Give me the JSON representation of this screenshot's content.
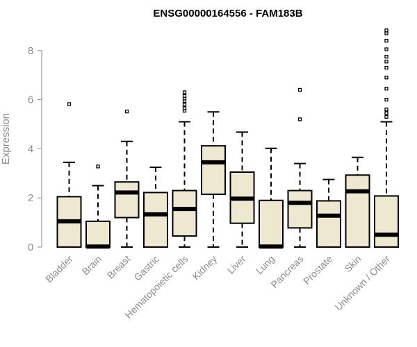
{
  "chart_data": {
    "type": "boxplot",
    "title": "ENSG00000164556 - FAM183B",
    "xlabel": "",
    "ylabel": "Expression",
    "ylim": [
      0,
      8.8
    ],
    "yticks": [
      0,
      2,
      4,
      6,
      8
    ],
    "grid": false,
    "legend": "none",
    "colors": {
      "box_fill": "#efe8d0",
      "stroke": "#000000",
      "axis_text": "#8c8c8c"
    },
    "categories": [
      "Bladder",
      "Brain",
      "Breast",
      "Gastric",
      "Hematopoietic cells",
      "Kidney",
      "Liver",
      "Lung",
      "Pancreas",
      "Prostate",
      "Skin",
      "Unknown / Other"
    ],
    "boxes": [
      {
        "min": 0,
        "q1": 0,
        "median": 1.05,
        "q3": 2.05,
        "max": 3.45,
        "outliers": [
          5.82
        ]
      },
      {
        "min": 0,
        "q1": 0,
        "median": 0.02,
        "q3": 1.05,
        "max": 2.5,
        "outliers": [
          3.28
        ]
      },
      {
        "min": 0,
        "q1": 1.2,
        "median": 2.22,
        "q3": 2.65,
        "max": 4.3,
        "outliers": [
          5.52
        ]
      },
      {
        "min": 0,
        "q1": 0,
        "median": 1.33,
        "q3": 2.22,
        "max": 3.25,
        "outliers": []
      },
      {
        "min": 0,
        "q1": 0.45,
        "median": 1.55,
        "q3": 2.3,
        "max": 5.1,
        "outliers": [
          5.55,
          5.65,
          5.8,
          5.95,
          6.05,
          6.15,
          6.3
        ]
      },
      {
        "min": 0,
        "q1": 2.15,
        "median": 3.45,
        "q3": 4.12,
        "max": 5.5,
        "outliers": []
      },
      {
        "min": 0,
        "q1": 0.97,
        "median": 1.97,
        "q3": 3.05,
        "max": 4.68,
        "outliers": []
      },
      {
        "min": 0,
        "q1": 0,
        "median": 0.02,
        "q3": 1.9,
        "max": 4.02,
        "outliers": []
      },
      {
        "min": 0,
        "q1": 0.78,
        "median": 1.8,
        "q3": 2.3,
        "max": 3.4,
        "outliers": [
          5.2,
          6.4
        ]
      },
      {
        "min": 0,
        "q1": 0,
        "median": 1.28,
        "q3": 1.88,
        "max": 2.75,
        "outliers": []
      },
      {
        "min": 0,
        "q1": 0,
        "median": 2.27,
        "q3": 2.93,
        "max": 3.65,
        "outliers": []
      },
      {
        "min": 0,
        "q1": 0,
        "median": 0.5,
        "q3": 2.08,
        "max": 5.1,
        "outliers": [
          5.3,
          5.45,
          5.6,
          6.0,
          6.45,
          6.9,
          7.3,
          7.55,
          7.75,
          8.05,
          8.4,
          8.7,
          8.82
        ]
      }
    ]
  }
}
